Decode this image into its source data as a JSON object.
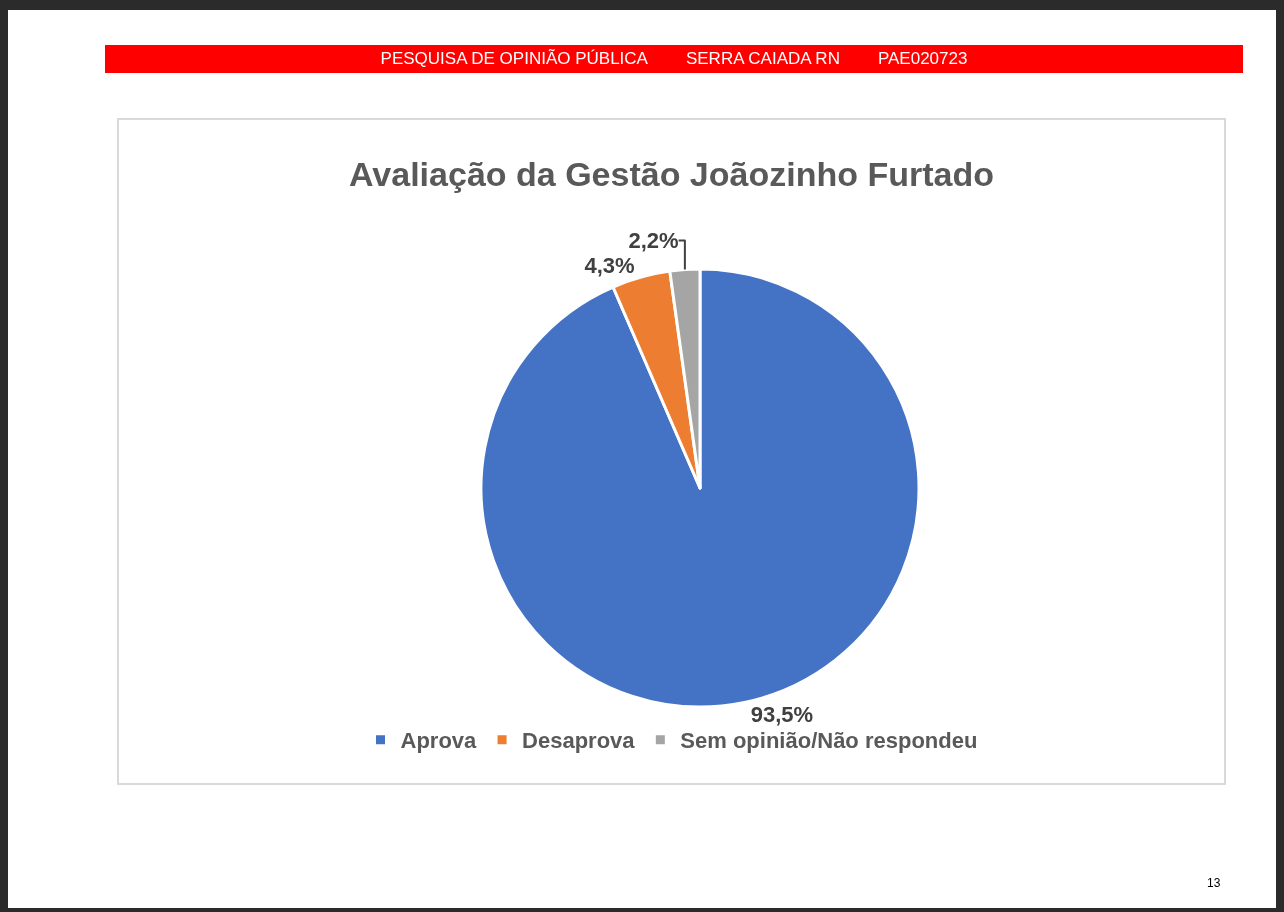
{
  "chart_data": {
    "type": "pie",
    "title": "Avaliação da Gestão Joãozinho Furtado",
    "categories": [
      "Aprova",
      "Desaprova",
      "Sem opinião/Não respondeu"
    ],
    "values": [
      93.5,
      4.3,
      2.2
    ],
    "colors": [
      "#4472c4",
      "#ed7d31",
      "#a5a5a5"
    ],
    "value_labels": [
      "93,5%",
      "4,3%",
      "2,2%"
    ],
    "legend": "bottom",
    "annotations": [
      "PESQUISA DE OPINIÃO PÚBLICA",
      "SERRA CAIADA RN",
      "PAE020723",
      "13"
    ]
  }
}
